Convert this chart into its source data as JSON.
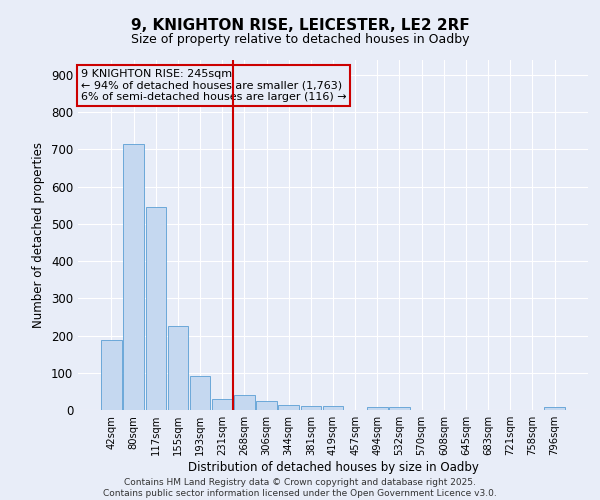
{
  "title_line1": "9, KNIGHTON RISE, LEICESTER, LE2 2RF",
  "title_line2": "Size of property relative to detached houses in Oadby",
  "xlabel": "Distribution of detached houses by size in Oadby",
  "ylabel": "Number of detached properties",
  "bar_labels": [
    "42sqm",
    "80sqm",
    "117sqm",
    "155sqm",
    "193sqm",
    "231sqm",
    "268sqm",
    "306sqm",
    "344sqm",
    "381sqm",
    "419sqm",
    "457sqm",
    "494sqm",
    "532sqm",
    "570sqm",
    "608sqm",
    "645sqm",
    "683sqm",
    "721sqm",
    "758sqm",
    "796sqm"
  ],
  "bar_values": [
    188,
    715,
    545,
    225,
    90,
    30,
    40,
    25,
    13,
    12,
    12,
    1,
    8,
    8,
    1,
    1,
    1,
    1,
    1,
    1,
    9
  ],
  "bar_color": "#c5d8f0",
  "bar_edge_color": "#5a9fd4",
  "background_color": "#e8edf8",
  "grid_color": "#ffffff",
  "vline_x": 5.5,
  "vline_color": "#cc0000",
  "annotation_text": "9 KNIGHTON RISE: 245sqm\n← 94% of detached houses are smaller (1,763)\n6% of semi-detached houses are larger (116) →",
  "annotation_box_edge": "#cc0000",
  "annotation_fontsize": 8.0,
  "ylim": [
    0,
    940
  ],
  "yticks": [
    0,
    100,
    200,
    300,
    400,
    500,
    600,
    700,
    800,
    900
  ],
  "footer_line1": "Contains HM Land Registry data © Crown copyright and database right 2025.",
  "footer_line2": "Contains public sector information licensed under the Open Government Licence v3.0."
}
